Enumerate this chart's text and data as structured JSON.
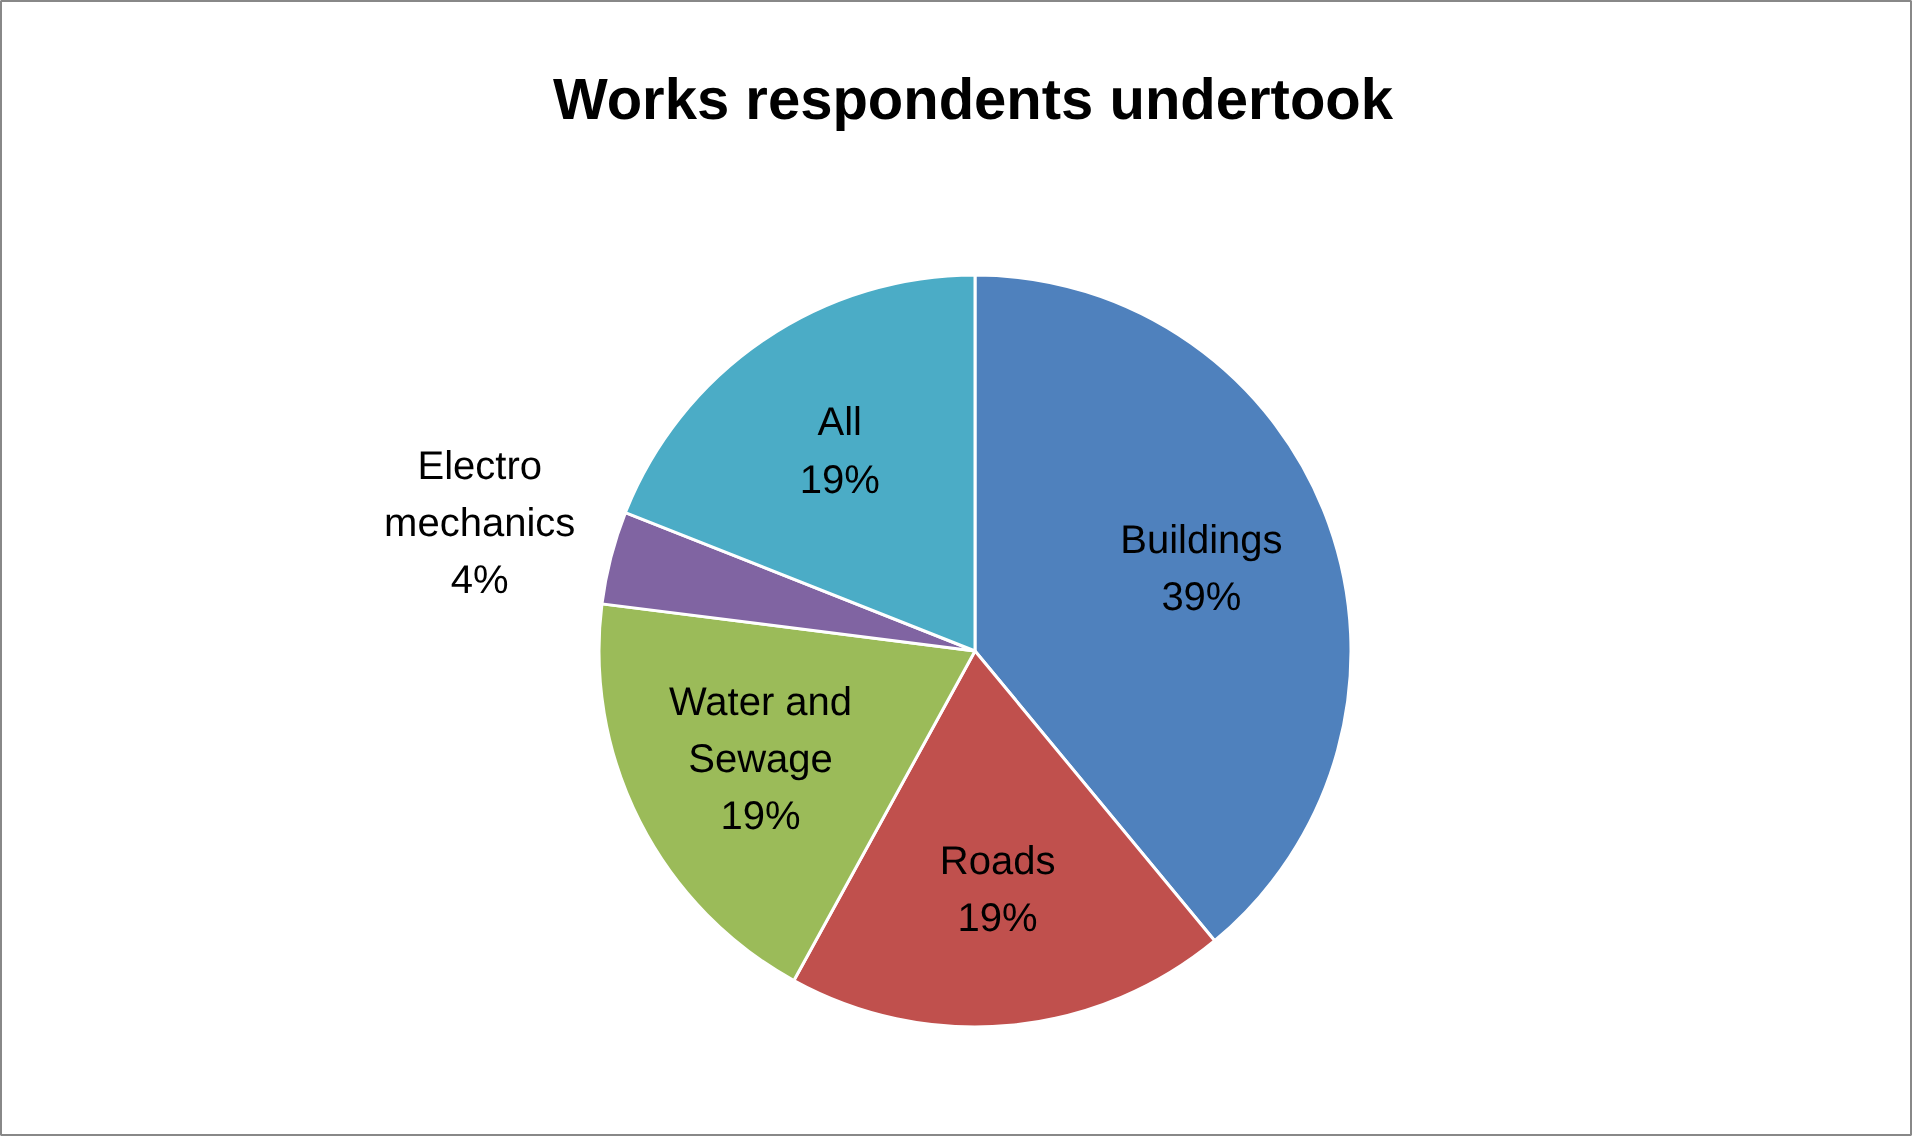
{
  "chart_data": {
    "type": "pie",
    "title": "Works respondents undertook",
    "categories": [
      "Buildings",
      "Roads",
      "Water and Sewage",
      "Electro mechanics",
      "All"
    ],
    "values": [
      39,
      19,
      19,
      4,
      19
    ],
    "value_labels": [
      "39%",
      "19%",
      "19%",
      "4%",
      "19%"
    ],
    "colors": [
      "#4f81bd",
      "#c0504d",
      "#9bbb59",
      "#8064a2",
      "#4bacc6"
    ]
  }
}
